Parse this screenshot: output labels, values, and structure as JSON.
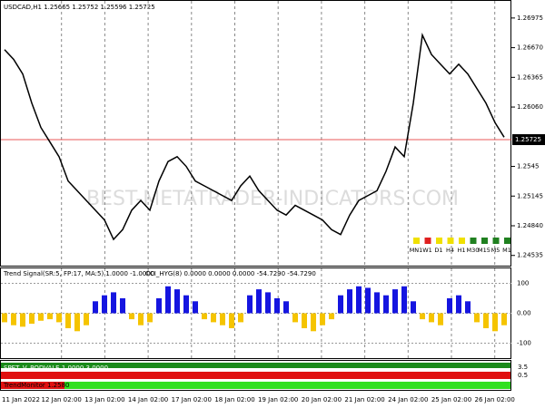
{
  "chart_data": [
    {
      "type": "line",
      "title": "USDCAD,H1 1.25665 1.25752 1.25596 1.25725",
      "values": [
        1.2665,
        1.2655,
        1.264,
        1.261,
        1.2585,
        1.257,
        1.2555,
        1.253,
        1.252,
        1.251,
        1.25,
        1.249,
        1.247,
        1.248,
        1.25,
        1.251,
        1.25,
        1.253,
        1.255,
        1.2555,
        1.2545,
        1.253,
        1.2525,
        1.252,
        1.2515,
        1.251,
        1.2525,
        1.2535,
        1.252,
        1.251,
        1.25,
        1.2495,
        1.2505,
        1.25,
        1.2495,
        1.249,
        1.248,
        1.2475,
        1.2495,
        1.251,
        1.2515,
        1.252,
        1.254,
        1.2565,
        1.2555,
        1.261,
        1.268,
        1.266,
        1.265,
        1.264,
        1.265,
        1.264,
        1.2625,
        1.261,
        1.259,
        1.2575
      ],
      "color": "#000000",
      "ylim": [
        1.2443,
        1.2716
      ],
      "yticks": [
        1.26975,
        {
          "value": 1.2667,
          "label": "1.26670"
        },
        1.26365,
        {
          "value": 1.2606,
          "label": "1.26060"
        },
        1.2545,
        1.25145,
        {
          "value": 1.2484,
          "label": "1.24840"
        },
        1.24535
      ],
      "current_price": 1.25725,
      "current_price_color": "#e02020",
      "time_labels": [
        "11 Jan 2022",
        "12 Jan 02:00",
        "13 Jan 02:00",
        "14 Jan 02:00",
        "17 Jan 02:00",
        "18 Jan 02:00",
        "19 Jan 02:00",
        "20 Jan 02:00",
        "21 Jan 02:00",
        "24 Jan 02:00",
        "25 Jan 02:00",
        "26 Jan 02:00"
      ],
      "timeframes": [
        "MN1",
        "W1",
        "D1",
        "H4",
        "H1",
        "M30",
        "M15",
        "M5",
        "M1"
      ],
      "timeframe_colors": [
        "#f0e000",
        "#e02020",
        "#f0e000",
        "#f0e000",
        "#f0e000",
        "#208020",
        "#208020",
        "#208020",
        "#208020"
      ],
      "watermark": "BEST-METATRADER-INDICATORS.COM"
    },
    {
      "type": "bar",
      "title": "Trend Signal(SR:5, FP:17, MA:5) 1.0000 -1.0000",
      "subtitle": "CCI_HYG(8) 0.0000 0.0000 0.0000 -54.7290 -54.7290",
      "values": [
        -30,
        -40,
        -45,
        -35,
        -25,
        -20,
        -30,
        -50,
        -60,
        -40,
        40,
        60,
        70,
        50,
        -20,
        -40,
        -30,
        50,
        90,
        80,
        60,
        40,
        -20,
        -30,
        -40,
        -50,
        -30,
        60,
        80,
        70,
        50,
        40,
        -30,
        -50,
        -60,
        -40,
        -20,
        60,
        80,
        90,
        85,
        70,
        60,
        80,
        90,
        40,
        -20,
        -30,
        -40,
        50,
        60,
        40,
        -30,
        -50,
        -60,
        -40
      ],
      "colors": [
        "#1515e0",
        "#f5c400"
      ],
      "ylim": [
        -150,
        150
      ],
      "yticks": [
        100,
        {
          "value": 0,
          "label": "0.00"
        },
        -100
      ]
    }
  ],
  "lower_panel": {
    "labels": [
      "SPET_V_PODVALE 1.0000 3.0000",
      "TrendMonitor 1.2580"
    ],
    "scale_labels": [
      "3.5",
      "0.5"
    ]
  }
}
